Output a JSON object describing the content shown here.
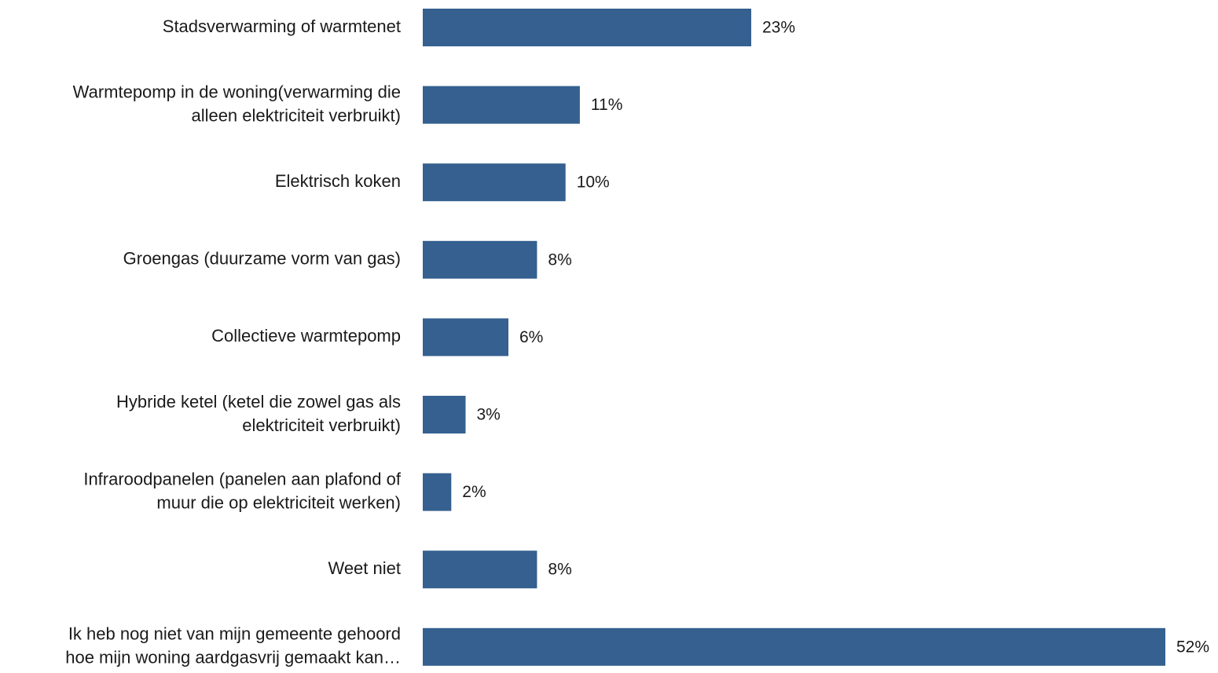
{
  "chart_data": {
    "type": "bar",
    "orientation": "horizontal",
    "title": "",
    "xlabel": "",
    "ylabel": "",
    "categories": [
      [
        "Stadsverwarming of warmtenet"
      ],
      [
        "Warmtepomp in de woning(verwarming die",
        "alleen elektriciteit verbruikt)"
      ],
      [
        "Elektrisch koken"
      ],
      [
        "Groengas (duurzame vorm van gas)"
      ],
      [
        "Collectieve warmtepomp"
      ],
      [
        "Hybride ketel (ketel die zowel gas als",
        "elektriciteit verbruikt)"
      ],
      [
        "Infraroodpanelen (panelen aan plafond of",
        "muur die op elektriciteit werken)"
      ],
      [
        "Weet niet"
      ],
      [
        "Ik heb nog niet van mijn gemeente gehoord",
        "hoe mijn woning aardgasvrij gemaakt kan…"
      ]
    ],
    "values": [
      23,
      11,
      10,
      8,
      6,
      3,
      2,
      8,
      52
    ],
    "value_labels": [
      "23%",
      "11%",
      "10%",
      "8%",
      "6%",
      "3%",
      "2%",
      "8%",
      "52%"
    ],
    "value_suffix": "%",
    "xlim": [
      0,
      52
    ],
    "grid": false,
    "legend": "none",
    "bar_color": "#35608f",
    "text_color": "#1a1a1a"
  }
}
